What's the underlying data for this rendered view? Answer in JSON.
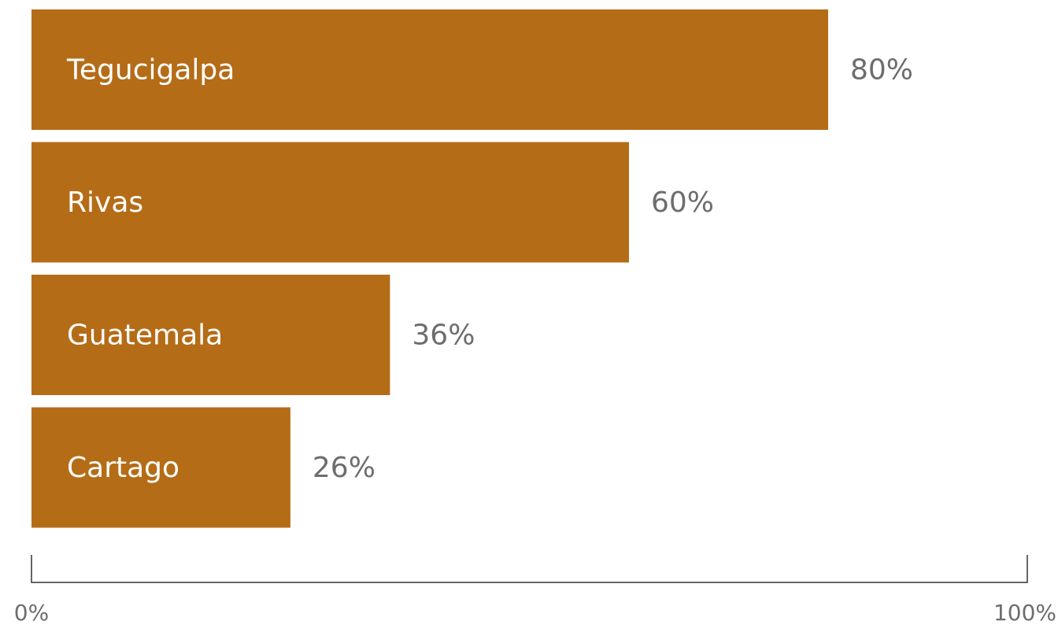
{
  "chart_data": {
    "type": "bar",
    "orientation": "horizontal",
    "categories": [
      "Tegucigalpa",
      "Rivas",
      "Guatemala",
      "Cartago"
    ],
    "values": [
      80,
      60,
      36,
      26
    ],
    "value_labels": [
      "80%",
      "60%",
      "36%",
      "26%"
    ],
    "xlim": [
      0,
      100
    ],
    "x_tick_labels": [
      "0%",
      "100%"
    ],
    "grid": false,
    "legend": "none",
    "colors": {
      "bar": "#b56c17",
      "bar_text": "#ffffff",
      "value_text": "#6d6d6d",
      "axis": "#333333"
    }
  }
}
